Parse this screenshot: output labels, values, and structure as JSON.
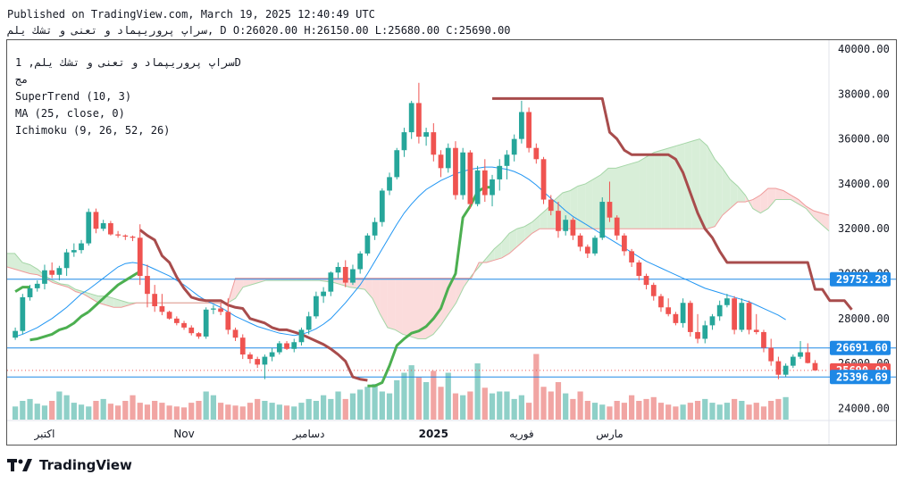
{
  "header": {
    "published": "Published on TradingView.com, March 19, 2025 12:40:49 UTC",
    "ohlc_line": "سراپ پروريپماد و تعنی و تشك يلم, D O:26020.00 H:26150.00 L:25680.00 C:25690.00"
  },
  "legend": {
    "symbol_line": "سراپ پروريپماد و تعنی و تشك يلم, 1D",
    "subtitle": "مج",
    "supertrend": "SuperTrend (10, 3)",
    "ma": "MA (25, close, 0)",
    "ichimoku": "Ichimoku (9, 26, 52, 26)"
  },
  "footer": {
    "brand": "TradingView"
  },
  "colors": {
    "up": "#26a69a",
    "down": "#ef5350",
    "vol_up": "#8fd0c8",
    "vol_down": "#f1a5a3",
    "supertrend_up": "#4caf50",
    "supertrend_down": "#a84c4c",
    "ma": "#2196f3",
    "cloud_up": "#d8eed8",
    "cloud_down": "#fbdcdc",
    "hline": "#1e88e5"
  },
  "chart_data": {
    "type": "candlestick",
    "y_axis": {
      "min": 23500,
      "max": 40400,
      "ticks": [
        "24000.00",
        "26000.00",
        "28000.00",
        "30000.00",
        "32000.00",
        "34000.00",
        "36000.00",
        "38000.00",
        "40000.00"
      ]
    },
    "x_axis": {
      "labels": [
        {
          "label": "اکتبر",
          "idx": 4
        },
        {
          "label": "Nov",
          "idx": 23
        },
        {
          "label": "دسامبر",
          "idx": 40
        },
        {
          "label": "2025",
          "idx": 57
        },
        {
          "label": "فوریه",
          "idx": 69
        },
        {
          "label": "مارس",
          "idx": 81
        }
      ]
    },
    "price_labels": [
      {
        "value": 29752.28,
        "text": "29752.28",
        "color": "#1e88e5"
      },
      {
        "value": 26691.6,
        "text": "26691.60",
        "color": "#1e88e5"
      },
      {
        "value": 25690.0,
        "text": "25690.00",
        "color": "#ef5350"
      },
      {
        "value": 25396.69,
        "text": "25396.69",
        "color": "#1e88e5"
      }
    ],
    "horizontal_lines": [
      29752.28,
      26691.6,
      25396.69
    ],
    "last_close": 25690.0,
    "candles": [
      [
        27150,
        27600,
        27050,
        27450
      ],
      [
        27450,
        29100,
        27300,
        28950
      ],
      [
        28950,
        29500,
        28800,
        29350
      ],
      [
        29350,
        29700,
        29200,
        29550
      ],
      [
        29550,
        30400,
        29300,
        30150
      ],
      [
        30150,
        30500,
        29800,
        29950
      ],
      [
        29950,
        30350,
        29700,
        30250
      ],
      [
        30250,
        31100,
        29900,
        30950
      ],
      [
        30950,
        31350,
        30750,
        31050
      ],
      [
        31050,
        31500,
        30900,
        31350
      ],
      [
        31350,
        32900,
        31250,
        32750
      ],
      [
        32750,
        32900,
        31800,
        32000
      ],
      [
        32000,
        32400,
        31900,
        32250
      ],
      [
        32250,
        32350,
        31700,
        31750
      ],
      [
        31750,
        31900,
        31600,
        31700
      ],
      [
        31700,
        31750,
        31500,
        31650
      ],
      [
        31650,
        31700,
        31450,
        31600
      ],
      [
        31600,
        32200,
        29500,
        29900
      ],
      [
        29900,
        30400,
        28500,
        29100
      ],
      [
        29100,
        29500,
        28300,
        28550
      ],
      [
        28550,
        29100,
        28150,
        28300
      ],
      [
        28300,
        28350,
        27950,
        28000
      ],
      [
        28000,
        28100,
        27700,
        27800
      ],
      [
        27800,
        27900,
        27500,
        27600
      ],
      [
        27600,
        27700,
        27250,
        27350
      ],
      [
        27350,
        27400,
        27100,
        27200
      ],
      [
        27200,
        28500,
        27100,
        28400
      ],
      [
        28400,
        28600,
        28200,
        28450
      ],
      [
        28450,
        28700,
        28150,
        28300
      ],
      [
        28300,
        28900,
        27300,
        27500
      ],
      [
        27500,
        27600,
        27000,
        27150
      ],
      [
        27150,
        27300,
        26200,
        26400
      ],
      [
        26400,
        26500,
        26000,
        26200
      ],
      [
        26200,
        26300,
        25800,
        25950
      ],
      [
        25950,
        26400,
        25300,
        26300
      ],
      [
        26300,
        26700,
        26100,
        26500
      ],
      [
        26500,
        27000,
        26400,
        26900
      ],
      [
        26900,
        27000,
        26600,
        26650
      ],
      [
        26650,
        27100,
        26500,
        26950
      ],
      [
        26950,
        27600,
        26800,
        27500
      ],
      [
        27500,
        28300,
        27300,
        28100
      ],
      [
        28100,
        29200,
        28000,
        29000
      ],
      [
        29000,
        29400,
        28700,
        29200
      ],
      [
        29200,
        30100,
        29000,
        30050
      ],
      [
        30050,
        30500,
        29800,
        30300
      ],
      [
        30300,
        30600,
        29400,
        29600
      ],
      [
        29600,
        30400,
        29500,
        30200
      ],
      [
        30200,
        31000,
        30000,
        30900
      ],
      [
        30900,
        31800,
        30800,
        31700
      ],
      [
        31700,
        32500,
        31500,
        32300
      ],
      [
        32300,
        33800,
        32100,
        33700
      ],
      [
        33700,
        34500,
        33500,
        34300
      ],
      [
        34300,
        35600,
        34200,
        35500
      ],
      [
        35500,
        36500,
        35200,
        36300
      ],
      [
        36300,
        37700,
        36000,
        37600
      ],
      [
        37600,
        38500,
        35800,
        36100
      ],
      [
        36100,
        36500,
        35700,
        36300
      ],
      [
        36300,
        36700,
        35000,
        35300
      ],
      [
        35300,
        35500,
        34300,
        34700
      ],
      [
        34700,
        35800,
        34500,
        35600
      ],
      [
        35600,
        35900,
        33300,
        33500
      ],
      [
        33500,
        35600,
        33300,
        35400
      ],
      [
        35400,
        35500,
        32900,
        33100
      ],
      [
        33100,
        34800,
        33000,
        34600
      ],
      [
        34600,
        35100,
        33200,
        33500
      ],
      [
        33500,
        34400,
        33000,
        34200
      ],
      [
        34200,
        35100,
        33700,
        34800
      ],
      [
        34800,
        35500,
        34200,
        35300
      ],
      [
        35300,
        36200,
        35000,
        36000
      ],
      [
        36000,
        37700,
        35800,
        37200
      ],
      [
        37200,
        37400,
        35400,
        35600
      ],
      [
        35600,
        35800,
        34900,
        35100
      ],
      [
        35100,
        35200,
        33100,
        33300
      ],
      [
        33300,
        33500,
        32600,
        32800
      ],
      [
        32800,
        33200,
        31600,
        31900
      ],
      [
        31900,
        32600,
        31700,
        32400
      ],
      [
        32400,
        32500,
        31500,
        31700
      ],
      [
        31700,
        31800,
        31000,
        31200
      ],
      [
        31200,
        31300,
        30700,
        30900
      ],
      [
        30900,
        31700,
        30800,
        31600
      ],
      [
        31600,
        33400,
        31500,
        33200
      ],
      [
        33200,
        34100,
        32300,
        32500
      ],
      [
        32500,
        32600,
        31500,
        31700
      ],
      [
        31700,
        31800,
        30800,
        31000
      ],
      [
        31000,
        31100,
        30300,
        30500
      ],
      [
        30500,
        30600,
        29700,
        29900
      ],
      [
        29900,
        30000,
        29300,
        29500
      ],
      [
        29500,
        29600,
        28800,
        29000
      ],
      [
        29000,
        29100,
        28300,
        28500
      ],
      [
        28500,
        28900,
        28100,
        28200
      ],
      [
        28200,
        28300,
        27700,
        27800
      ],
      [
        27800,
        28900,
        27600,
        28700
      ],
      [
        28700,
        28800,
        27200,
        27400
      ],
      [
        27400,
        28200,
        26900,
        27100
      ],
      [
        27100,
        27900,
        26900,
        27700
      ],
      [
        27700,
        28200,
        27500,
        28100
      ],
      [
        28100,
        28800,
        27900,
        28600
      ],
      [
        28600,
        29100,
        28500,
        28900
      ],
      [
        28900,
        29000,
        27300,
        27500
      ],
      [
        27500,
        28900,
        27400,
        28700
      ],
      [
        28700,
        28800,
        27300,
        27500
      ],
      [
        27500,
        28200,
        27300,
        27400
      ],
      [
        27400,
        27500,
        26500,
        26700
      ],
      [
        26700,
        27100,
        25900,
        26100
      ],
      [
        26100,
        26300,
        25300,
        25500
      ],
      [
        25500,
        26000,
        25400,
        25900
      ],
      [
        25900,
        26400,
        25800,
        26300
      ],
      [
        26300,
        27000,
        26200,
        26500
      ],
      [
        26500,
        26900,
        26000,
        26020
      ],
      [
        26020,
        26150,
        25680,
        25690
      ]
    ],
    "volume_scale_max": 100,
    "volumes": [
      14,
      20,
      22,
      17,
      15,
      20,
      30,
      26,
      18,
      16,
      14,
      20,
      22,
      17,
      15,
      20,
      26,
      18,
      16,
      20,
      18,
      15,
      14,
      13,
      18,
      20,
      30,
      26,
      18,
      16,
      15,
      14,
      18,
      22,
      20,
      18,
      16,
      15,
      14,
      18,
      22,
      20,
      26,
      22,
      30,
      22,
      28,
      32,
      35,
      38,
      30,
      28,
      42,
      50,
      58,
      45,
      40,
      52,
      35,
      50,
      28,
      26,
      30,
      60,
      34,
      28,
      30,
      30,
      22,
      26,
      18,
      70,
      35,
      30,
      40,
      28,
      22,
      30,
      20,
      18,
      16,
      14,
      20,
      18,
      26,
      20,
      22,
      24,
      18,
      16,
      14,
      16,
      18,
      20,
      22,
      18,
      16,
      18,
      22,
      20,
      16,
      18,
      14,
      20,
      22,
      24
    ],
    "ma": [
      27200,
      27300,
      27450,
      27600,
      27800,
      28000,
      28250,
      28500,
      28800,
      29100,
      29300,
      29550,
      29800,
      30050,
      30300,
      30450,
      30500,
      30450,
      30350,
      30200,
      30050,
      29900,
      29700,
      29500,
      29250,
      29000,
      28800,
      28650,
      28500,
      28300,
      28100,
      27950,
      27800,
      27650,
      27550,
      27450,
      27350,
      27300,
      27250,
      27300,
      27400,
      27550,
      27750,
      28000,
      28350,
      28700,
      29100,
      29500,
      30000,
      30550,
      31100,
      31650,
      32200,
      32700,
      33100,
      33450,
      33750,
      33950,
      34150,
      34300,
      34450,
      34550,
      34650,
      34700,
      34750,
      34750,
      34700,
      34650,
      34550,
      34400,
      34200,
      33950,
      33650,
      33350,
      33100,
      32800,
      32550,
      32350,
      32150,
      31950,
      31750,
      31550,
      31350,
      31150,
      30950,
      30750,
      30550,
      30400,
      30250,
      30100,
      29950,
      29800,
      29650,
      29500,
      29350,
      29250,
      29150,
      29050,
      28950,
      28850,
      28750,
      28600,
      28450,
      28300,
      28150,
      27950
    ],
    "supertrend": [
      {
        "from": 0,
        "to": 2,
        "dir": "up",
        "values": [
          29200,
          29400,
          29400
        ]
      },
      {
        "from": 2,
        "to": 10,
        "dir": "up",
        "values": [
          27050,
          27100,
          27200,
          27300,
          27500,
          27600,
          27800,
          28100,
          28300
        ]
      },
      {
        "from": 10,
        "to": 17,
        "dir": "up",
        "values": [
          28300,
          28600,
          28900,
          29200,
          29500,
          29700,
          29900,
          30100
        ]
      },
      {
        "from": 17,
        "to": 48,
        "dir": "down",
        "values": [
          31950,
          31700,
          31500,
          30800,
          30500,
          29850,
          29350,
          28950,
          28850,
          28800,
          28800,
          28800,
          28600,
          28500,
          28450,
          28000,
          27900,
          27800,
          27600,
          27500,
          27500,
          27400,
          27300,
          27150,
          27000,
          26850,
          26650,
          26400,
          26100,
          25400,
          25300,
          25250
        ]
      },
      {
        "from": 48,
        "to": 65,
        "dir": "up",
        "values": [
          25000,
          25000,
          25150,
          25900,
          26800,
          27100,
          27350,
          27450,
          27650,
          28000,
          28450,
          29350,
          30000,
          32500,
          33000,
          33650,
          33850,
          33850
        ]
      },
      {
        "from": 65,
        "to": 104,
        "dir": "down",
        "values": [
          37800,
          37800,
          37800,
          37800,
          37800,
          37800,
          37800,
          37800,
          37800,
          37800,
          37800,
          37800,
          37800,
          37800,
          37800,
          37800,
          36300,
          36000,
          35500,
          35300,
          35300,
          35300,
          35300,
          35300,
          35300,
          35100,
          34500,
          33600,
          32700,
          32000,
          31600,
          31000,
          30500,
          30500,
          30500,
          30500,
          30500,
          30500,
          30500,
          30500,
          30500,
          30500,
          30500,
          30500,
          29300,
          29300,
          28800,
          28800,
          28800,
          28400
        ]
      }
    ],
    "cloud_a": [
      30900,
      30900,
      30500,
      30400,
      30200,
      29900,
      29700,
      29550,
      29500,
      29300,
      29200,
      29100,
      29000,
      29000,
      28900,
      28800,
      28700,
      28700,
      28700,
      28700,
      28700,
      28700,
      28700,
      28700,
      28700,
      28700,
      28700,
      28700,
      28700,
      28700,
      28900,
      29400,
      29500,
      29600,
      29700,
      29700,
      29700,
      29700,
      29700,
      29700,
      29700,
      29700,
      29650,
      29600,
      29500,
      29400,
      29350,
      29300,
      28900,
      28200,
      27600,
      27500,
      27300,
      27200,
      27100,
      27100,
      27300,
      27700,
      28200,
      28700,
      29400,
      29900,
      30300,
      30700,
      31100,
      31400,
      31800,
      32000,
      32100,
      32300,
      32600,
      32900,
      33300,
      33600,
      33700,
      33900,
      34000,
      34200,
      34400,
      34700,
      34700,
      34800,
      34900,
      35000,
      35200,
      35400,
      35500,
      35600,
      35700,
      35800,
      35900,
      36000,
      35700,
      35100,
      34700,
      34200,
      33900,
      33500,
      32900,
      32700,
      32900,
      33300,
      33300,
      33300,
      33100,
      32900,
      32500,
      32200,
      31900
    ],
    "cloud_b": [
      30300,
      30200,
      30100,
      30000,
      29950,
      29800,
      29600,
      29500,
      29400,
      29200,
      29100,
      28900,
      28700,
      28600,
      28500,
      28500,
      28600,
      28700,
      28700,
      28700,
      28700,
      28700,
      28700,
      28700,
      28700,
      28700,
      28700,
      28700,
      28700,
      28700,
      29800,
      29800,
      29800,
      29800,
      29800,
      29800,
      29800,
      29800,
      29800,
      29800,
      29800,
      29800,
      29800,
      29800,
      29800,
      29800,
      29800,
      29800,
      29800,
      29800,
      29800,
      29800,
      29800,
      29800,
      29800,
      29800,
      29800,
      29800,
      29800,
      29800,
      29800,
      29800,
      30500,
      30500,
      30600,
      30700,
      30900,
      31200,
      31500,
      31800,
      32000,
      32000,
      32000,
      32000,
      32000,
      32000,
      32000,
      32000,
      32000,
      32000,
      32000,
      32000,
      32000,
      32000,
      32000,
      32000,
      32000,
      32000,
      32000,
      32000,
      32000,
      32000,
      32000,
      32100,
      32600,
      32900,
      33200,
      33200,
      33300,
      33500,
      33800,
      33800,
      33700,
      33500,
      33300,
      33000,
      32800,
      32700,
      32600
    ]
  }
}
